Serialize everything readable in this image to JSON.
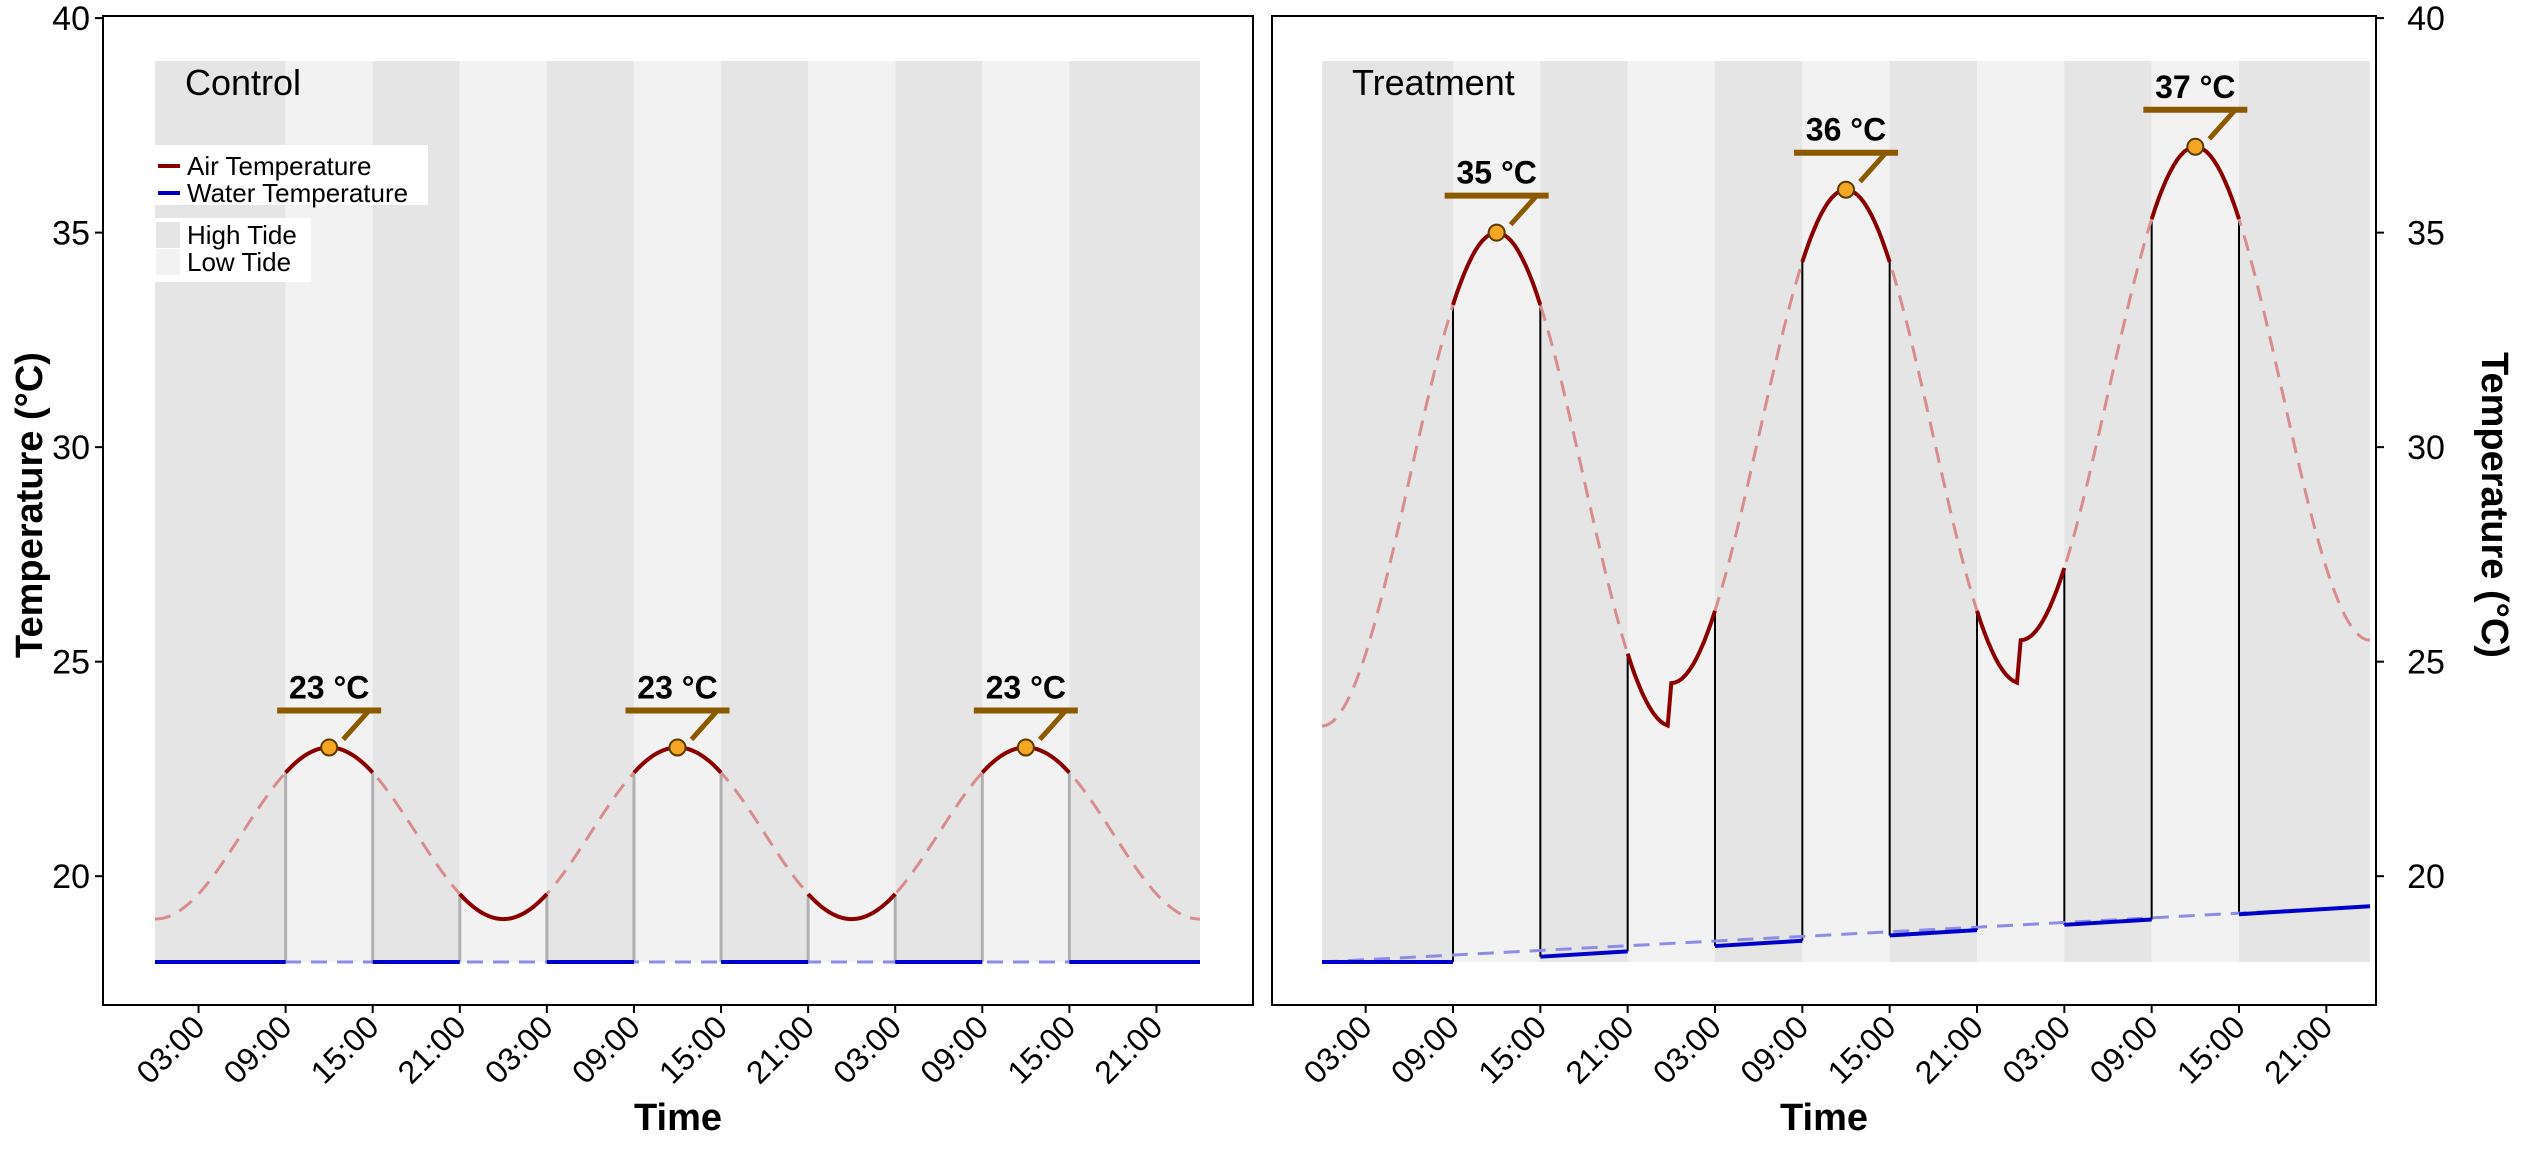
{
  "shared": {
    "ylabel": "Temperature (°C)",
    "xlabel": "Time",
    "y_ticks": [
      20,
      25,
      30,
      35,
      40
    ],
    "x_tick_labels": [
      "03:00",
      "09:00",
      "15:00",
      "21:00",
      "03:00",
      "09:00",
      "15:00",
      "21:00",
      "03:00",
      "09:00",
      "15:00",
      "21:00"
    ],
    "colors": {
      "air": "#8b0000",
      "air_dashed": "#d98c8c",
      "water": "#0000cc",
      "water_dashed": "#8c8ce6",
      "high_tide": "#e5e5e5",
      "low_tide": "#f2f2f2",
      "peak_marker": "#f5a623",
      "peak_bar": "#8b5a00",
      "control_vlines": "#b0b0b0",
      "treatment_vlines": "#000000"
    }
  },
  "legend": {
    "items": [
      {
        "label": "Air Temperature",
        "kind": "line",
        "color": "#8b0000"
      },
      {
        "label": "Water Temperature",
        "kind": "line",
        "color": "#0000cc"
      },
      {
        "label": "High Tide",
        "kind": "fill",
        "color": "#e5e5e5"
      },
      {
        "label": "Low Tide",
        "kind": "fill",
        "color": "#f2f2f2"
      }
    ]
  },
  "chart_data": [
    {
      "type": "line",
      "panel_title": "Control",
      "xlabel": "Time",
      "ylabel": "Temperature (°C)",
      "x_unit": "hours since 00:00 day 1",
      "xlim": [
        0,
        72
      ],
      "ylim": [
        18,
        40
      ],
      "tide_periods": [
        {
          "start": 0,
          "end": 9,
          "tide": "High Tide"
        },
        {
          "start": 9,
          "end": 15,
          "tide": "Low Tide"
        },
        {
          "start": 15,
          "end": 21,
          "tide": "High Tide"
        },
        {
          "start": 21,
          "end": 27,
          "tide": "Low Tide"
        },
        {
          "start": 27,
          "end": 33,
          "tide": "High Tide"
        },
        {
          "start": 33,
          "end": 39,
          "tide": "Low Tide"
        },
        {
          "start": 39,
          "end": 45,
          "tide": "High Tide"
        },
        {
          "start": 45,
          "end": 51,
          "tide": "Low Tide"
        },
        {
          "start": 51,
          "end": 57,
          "tide": "High Tide"
        },
        {
          "start": 57,
          "end": 63,
          "tide": "Low Tide"
        },
        {
          "start": 63,
          "end": 72,
          "tide": "High Tide"
        }
      ],
      "air_temperature": {
        "mean": 21,
        "amplitude": 2,
        "peak_hour": 12,
        "period_hours": 24,
        "samples": [
          {
            "x": 0,
            "y": 19.1
          },
          {
            "x": 3,
            "y": 19.6
          },
          {
            "x": 6,
            "y": 21.0
          },
          {
            "x": 9,
            "y": 22.4
          },
          {
            "x": 12,
            "y": 23.0
          },
          {
            "x": 15,
            "y": 22.4
          },
          {
            "x": 18,
            "y": 21.0
          },
          {
            "x": 21,
            "y": 19.6
          },
          {
            "x": 24,
            "y": 19.0
          },
          {
            "x": 27,
            "y": 19.6
          },
          {
            "x": 30,
            "y": 21.0
          },
          {
            "x": 33,
            "y": 22.4
          },
          {
            "x": 36,
            "y": 23.0
          },
          {
            "x": 39,
            "y": 22.4
          },
          {
            "x": 42,
            "y": 21.0
          },
          {
            "x": 45,
            "y": 19.6
          },
          {
            "x": 48,
            "y": 19.0
          },
          {
            "x": 51,
            "y": 19.6
          },
          {
            "x": 54,
            "y": 21.0
          },
          {
            "x": 57,
            "y": 22.4
          },
          {
            "x": 60,
            "y": 23.0
          },
          {
            "x": 63,
            "y": 22.4
          },
          {
            "x": 66,
            "y": 21.0
          },
          {
            "x": 69,
            "y": 19.6
          },
          {
            "x": 72,
            "y": 19.0
          }
        ]
      },
      "water_temperature": {
        "start": 18.0,
        "end": 18.0
      },
      "peaks": [
        {
          "x": 12,
          "y": 23,
          "label": "23 °C"
        },
        {
          "x": 36,
          "y": 23,
          "label": "23 °C"
        },
        {
          "x": 60,
          "y": 23,
          "label": "23 °C"
        }
      ]
    },
    {
      "type": "line",
      "panel_title": "Treatment",
      "xlabel": "Time",
      "ylabel": "Temperature (°C)",
      "x_unit": "hours since 00:00 day 1",
      "xlim": [
        0,
        72
      ],
      "ylim": [
        18,
        40
      ],
      "tide_periods": [
        {
          "start": 0,
          "end": 9,
          "tide": "High Tide"
        },
        {
          "start": 9,
          "end": 15,
          "tide": "Low Tide"
        },
        {
          "start": 15,
          "end": 21,
          "tide": "High Tide"
        },
        {
          "start": 21,
          "end": 27,
          "tide": "Low Tide"
        },
        {
          "start": 27,
          "end": 33,
          "tide": "High Tide"
        },
        {
          "start": 33,
          "end": 39,
          "tide": "Low Tide"
        },
        {
          "start": 39,
          "end": 45,
          "tide": "High Tide"
        },
        {
          "start": 45,
          "end": 51,
          "tide": "Low Tide"
        },
        {
          "start": 51,
          "end": 57,
          "tide": "High Tide"
        },
        {
          "start": 57,
          "end": 63,
          "tide": "Low Tide"
        },
        {
          "start": 63,
          "end": 72,
          "tide": "High Tide"
        }
      ],
      "air_temperature": {
        "daily_cycles": [
          {
            "day": 1,
            "peak": 35,
            "min": 23.5
          },
          {
            "day": 2,
            "peak": 36,
            "min": 24.5
          },
          {
            "day": 3,
            "peak": 37,
            "min": 25.5
          }
        ],
        "peak_hour": 12,
        "samples": [
          {
            "x": 0,
            "y": 22.8
          },
          {
            "x": 3,
            "y": 25.2
          },
          {
            "x": 6,
            "y": 29.3
          },
          {
            "x": 9,
            "y": 33.3
          },
          {
            "x": 12,
            "y": 35.0
          },
          {
            "x": 15,
            "y": 33.0
          },
          {
            "x": 18,
            "y": 28.8
          },
          {
            "x": 21,
            "y": 24.8
          },
          {
            "x": 24,
            "y": 23.5
          },
          {
            "x": 27,
            "y": 25.7
          },
          {
            "x": 30,
            "y": 30.3
          },
          {
            "x": 33,
            "y": 34.3
          },
          {
            "x": 36,
            "y": 36.0
          },
          {
            "x": 39,
            "y": 34.0
          },
          {
            "x": 42,
            "y": 29.8
          },
          {
            "x": 45,
            "y": 25.8
          },
          {
            "x": 48,
            "y": 24.5
          },
          {
            "x": 51,
            "y": 26.7
          },
          {
            "x": 54,
            "y": 31.3
          },
          {
            "x": 57,
            "y": 35.3
          },
          {
            "x": 60,
            "y": 37.0
          },
          {
            "x": 63,
            "y": 35.0
          },
          {
            "x": 66,
            "y": 30.5
          },
          {
            "x": 69,
            "y": 27.3
          },
          {
            "x": 72,
            "y": 25.7
          }
        ]
      },
      "water_temperature": {
        "start": 18.0,
        "end": 19.3,
        "flat_until": 9
      },
      "peaks": [
        {
          "x": 12,
          "y": 35,
          "label": "35 °C"
        },
        {
          "x": 36,
          "y": 36,
          "label": "36 °C"
        },
        {
          "x": 60,
          "y": 37,
          "label": "37 °C"
        }
      ]
    }
  ]
}
